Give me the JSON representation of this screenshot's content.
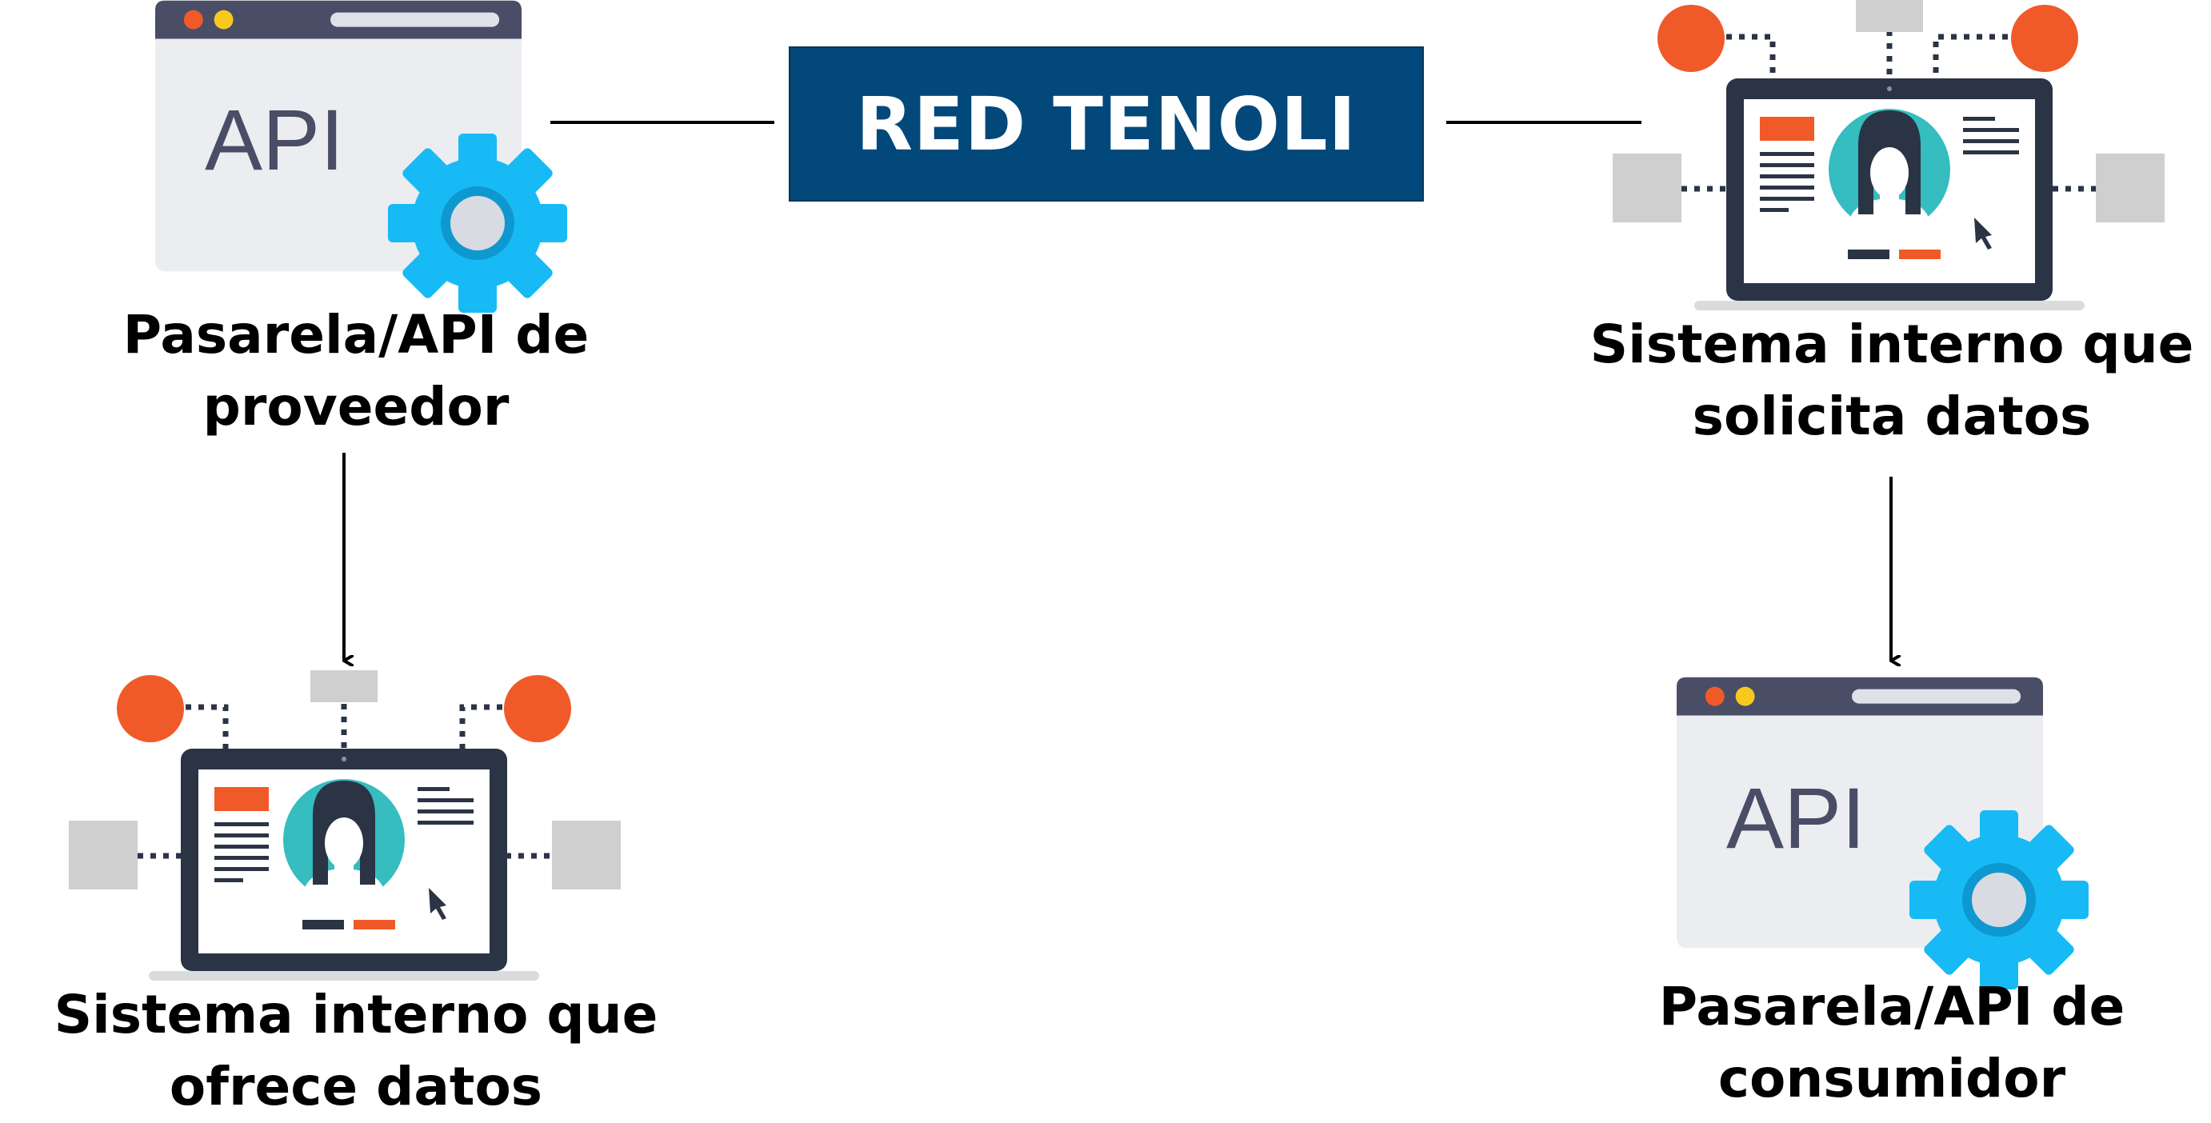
{
  "banner": {
    "label": "RED TENOLI"
  },
  "provider_gateway": {
    "icon_text": "API",
    "label_line1": "Pasarela/API de",
    "label_line2": "proveedor"
  },
  "offering_system": {
    "label_line1": "Sistema interno que",
    "label_line2": "ofrece datos"
  },
  "requesting_system": {
    "label_line1": "Sistema interno que",
    "label_line2": "solicita datos"
  },
  "consumer_gateway": {
    "icon_text": "API",
    "label_line1": "Pasarela/API de",
    "label_line2": "consumidor"
  },
  "colors": {
    "banner_bg": "#03487b",
    "window_bar": "#4a4d66",
    "window_body": "#ebedf0",
    "gear": "#17baf4",
    "accent_orange": "#f05a28",
    "accent_teal": "#35bdc0",
    "node_gray": "#cfcfcf"
  },
  "icons": {
    "gateway": [
      "api-window-icon",
      "gear-icon"
    ],
    "system": [
      "laptop-icon",
      "user-avatar-icon",
      "cursor-icon",
      "network-node-icon"
    ]
  }
}
